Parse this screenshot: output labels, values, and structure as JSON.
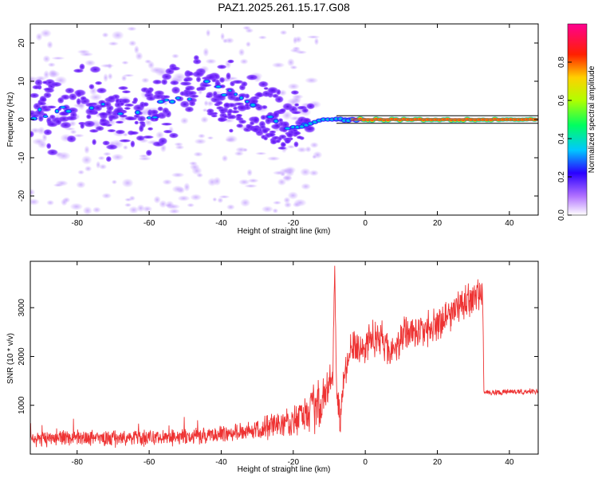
{
  "chart_data": [
    {
      "type": "heatmap",
      "title": "PAZ1.2025.261.15.17.G08",
      "xlabel": "Height of straight line (km)",
      "ylabel": "Frequency (Hz)",
      "xlim": [
        -93,
        48
      ],
      "ylim": [
        -25,
        25
      ],
      "xticks": [
        -80,
        -60,
        -40,
        -20,
        0,
        20,
        40
      ],
      "yticks": [
        -20,
        -10,
        0,
        10,
        20
      ],
      "colorbar": {
        "label": "Normalized spectral amplitude",
        "range": [
          0,
          1
        ],
        "ticks": [
          "0.0",
          "0.2",
          "0.4",
          "0.6",
          "0.8"
        ]
      },
      "ridge": {
        "x": [
          -93,
          -80,
          -60,
          -55,
          -50,
          -45,
          -40,
          -35,
          -30,
          -25,
          -20,
          -18,
          -15,
          -12,
          -10,
          -5,
          0,
          10,
          20,
          30,
          40,
          48
        ],
        "y": [
          2,
          2,
          1,
          5,
          8,
          9,
          8,
          5,
          3,
          1,
          -2,
          -2,
          -1,
          0,
          0,
          0,
          0,
          0,
          0,
          0,
          0,
          0
        ]
      },
      "lower_branch": {
        "x": [
          -45,
          -40,
          -35,
          -30,
          -25,
          -22,
          -20
        ],
        "y": [
          1,
          2,
          0,
          -3,
          -5,
          -6,
          -4
        ]
      }
    },
    {
      "type": "line",
      "xlabel": "Height of straight line (km)",
      "ylabel": "SNR (10 * v/v)",
      "xlim": [
        -93,
        48
      ],
      "ylim": [
        0,
        3950
      ],
      "xticks": [
        -80,
        -60,
        -40,
        -20,
        0,
        20,
        40
      ],
      "yticks": [
        1000,
        2000,
        3000
      ],
      "color": "#ee3333",
      "x": [
        -93,
        -85,
        -80,
        -70,
        -60,
        -50,
        -40,
        -30,
        -25,
        -20,
        -15,
        -12,
        -10,
        -9,
        -8.5,
        -8,
        -7,
        -6,
        -4,
        -2,
        0,
        2,
        5,
        8,
        10,
        15,
        20,
        25,
        30,
        32,
        32.5,
        33,
        35,
        40,
        48
      ],
      "y": [
        300,
        330,
        330,
        330,
        340,
        350,
        400,
        500,
        560,
        650,
        900,
        1000,
        1450,
        1700,
        3900,
        1300,
        700,
        1500,
        2300,
        2100,
        2200,
        2400,
        2350,
        2000,
        2500,
        2500,
        2700,
        2900,
        3200,
        3300,
        3300,
        1300,
        1250,
        1280,
        1280
      ]
    }
  ]
}
